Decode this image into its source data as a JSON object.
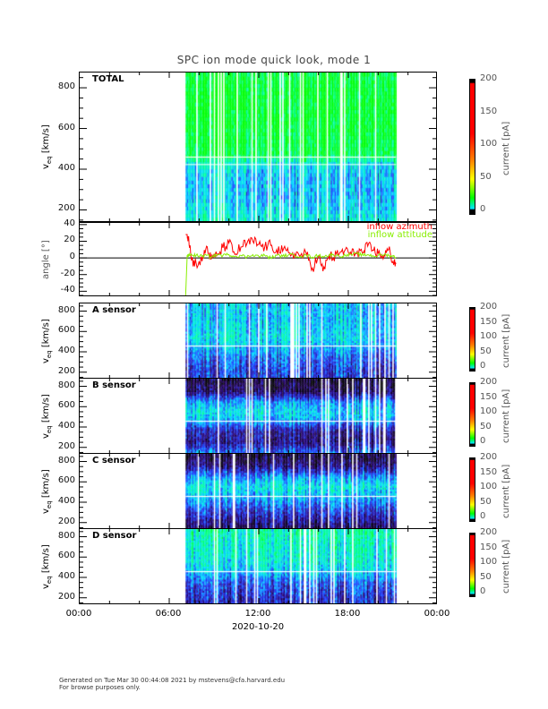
{
  "title": "SPC ion mode quick look, mode 1",
  "footer": {
    "line1": "Generated on Tue Mar 30 00:44:08 2021 by mstevens@cfa.harvard.edu",
    "line2": "For browse purposes only."
  },
  "chart_data": {
    "type": "heatmap",
    "date_label": "2020-10-20",
    "x_ticks": [
      "00:00",
      "06:00",
      "12:00",
      "18:00",
      "00:00"
    ],
    "x_range_hours": [
      0,
      24
    ],
    "data_coverage_hours": [
      7.1,
      21.2
    ],
    "colorbar": {
      "label": "current [pA]",
      "ticks": [
        "0",
        "50",
        "100",
        "150",
        "200"
      ],
      "range": [
        0,
        200
      ]
    },
    "panels": [
      {
        "name": "TOTAL",
        "ylabel": "v_eq [km/s]",
        "yunit": "[km/s]",
        "yticks": [
          "200",
          "400",
          "600",
          "800"
        ],
        "ylim": [
          145,
          875
        ],
        "profile_v": [
          150,
          250,
          350,
          420,
          470,
          550,
          650,
          750,
          850
        ],
        "profile_level": [
          0.6,
          0.5,
          0.5,
          0.55,
          0.8,
          0.82,
          0.85,
          0.85,
          0.82
        ]
      },
      {
        "name": "angle",
        "ylabel": "angle [°]",
        "yticks": [
          "40",
          "20",
          "0",
          "-20",
          "-40"
        ],
        "ylim": [
          -45,
          42
        ],
        "legend": [
          "inflow azimuth",
          "inflow attitude"
        ],
        "colors": [
          "#ff0000",
          "#88ee00"
        ],
        "t": [
          7.1,
          7.2,
          7.3,
          7.5,
          7.8,
          8.2,
          8.5,
          8.8,
          9.2,
          9.6,
          10.0,
          10.4,
          10.8,
          11.2,
          11.6,
          12.0,
          12.4,
          12.8,
          13.2,
          13.6,
          14.0,
          14.4,
          14.8,
          15.2,
          15.6,
          16.0,
          16.3,
          16.7,
          17.0,
          17.4,
          17.8,
          18.2,
          18.6,
          19.0,
          19.3,
          19.7,
          20.0,
          20.4,
          20.7,
          21.0,
          21.2
        ],
        "series": [
          {
            "name": "inflow azimuth",
            "values": [
              28,
              28,
              26,
              -3,
              -6,
              -4,
              14,
              -2,
              3,
              12,
              18,
              4,
              13,
              17,
              20,
              16,
              13,
              15,
              10,
              8,
              6,
              5,
              3,
              4,
              -12,
              2,
              -16,
              3,
              0,
              5,
              10,
              4,
              8,
              6,
              14,
              9,
              5,
              3,
              10,
              -4,
              -7
            ]
          },
          {
            "name": "inflow attitude",
            "values": [
              -45,
              2,
              3,
              4,
              3,
              2,
              3,
              1,
              4,
              3,
              4,
              2,
              3,
              1,
              4,
              2,
              3,
              0,
              3,
              2,
              4,
              3,
              2,
              3,
              1,
              3,
              2,
              3,
              4,
              2,
              3,
              4,
              5,
              3,
              4,
              2,
              3,
              4,
              3,
              2,
              1
            ]
          }
        ]
      },
      {
        "name": "A sensor",
        "ylabel": "v_eq [km/s]",
        "yticks": [
          "200",
          "400",
          "600",
          "800"
        ],
        "ylim": [
          145,
          875
        ],
        "profile_v": [
          150,
          250,
          350,
          420,
          470,
          550,
          650,
          750,
          850
        ],
        "profile_level": [
          0.3,
          0.32,
          0.38,
          0.45,
          0.5,
          0.55,
          0.52,
          0.5,
          0.5
        ]
      },
      {
        "name": "B sensor",
        "ylabel": "v_eq [km/s]",
        "yticks": [
          "200",
          "400",
          "600",
          "800"
        ],
        "ylim": [
          145,
          875
        ],
        "profile_v": [
          150,
          250,
          350,
          420,
          470,
          550,
          650,
          750,
          850
        ],
        "profile_level": [
          0.4,
          0.2,
          0.22,
          0.35,
          0.48,
          0.55,
          0.45,
          0.15,
          0.1
        ]
      },
      {
        "name": "C sensor",
        "ylabel": "v_eq [km/s]",
        "yticks": [
          "200",
          "400",
          "600",
          "800"
        ],
        "ylim": [
          145,
          875
        ],
        "profile_v": [
          150,
          250,
          350,
          420,
          470,
          550,
          650,
          750,
          850
        ],
        "profile_level": [
          0.15,
          0.25,
          0.35,
          0.45,
          0.5,
          0.58,
          0.45,
          0.2,
          0.1
        ]
      },
      {
        "name": "D sensor",
        "ylabel": "v_eq [km/s]",
        "yticks": [
          "200",
          "400",
          "600",
          "800"
        ],
        "ylim": [
          145,
          875
        ],
        "profile_v": [
          150,
          250,
          350,
          420,
          470,
          550,
          650,
          750,
          850
        ],
        "profile_level": [
          0.25,
          0.3,
          0.35,
          0.45,
          0.52,
          0.58,
          0.6,
          0.62,
          0.65
        ]
      }
    ]
  }
}
